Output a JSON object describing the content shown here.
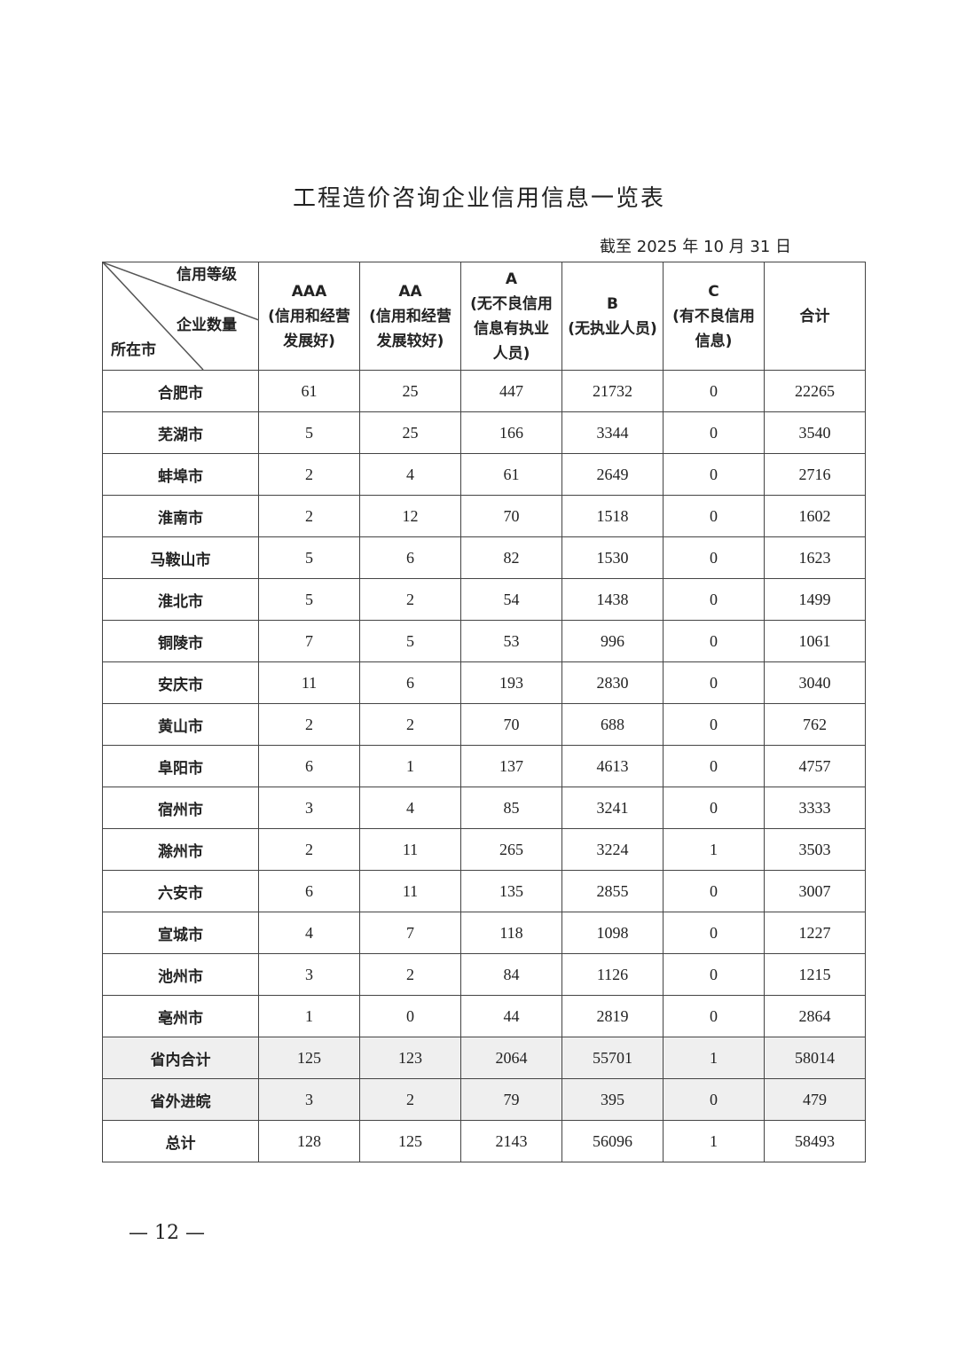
{
  "title": "工程造价咨询企业信用信息一览表",
  "date_note": "截至 2025 年 10 月 31 日",
  "corner": {
    "top": "信用等级",
    "middle": "企业数量",
    "bottom": "所在市"
  },
  "columns": [
    {
      "grade": "AAA",
      "desc": "(信用和经营发展好)"
    },
    {
      "grade": "AA",
      "desc": "(信用和经营发展较好)"
    },
    {
      "grade": "A",
      "desc": "(无不良信用信息有执业人员)"
    },
    {
      "grade": "B",
      "desc": "(无执业人员)"
    },
    {
      "grade": "C",
      "desc": "(有不良信用信息)"
    },
    {
      "grade": "",
      "desc": "合计"
    }
  ],
  "rows": [
    {
      "city": "合肥市",
      "v": [
        "61",
        "25",
        "447",
        "21732",
        "0",
        "22265"
      ]
    },
    {
      "city": "芜湖市",
      "v": [
        "5",
        "25",
        "166",
        "3344",
        "0",
        "3540"
      ]
    },
    {
      "city": "蚌埠市",
      "v": [
        "2",
        "4",
        "61",
        "2649",
        "0",
        "2716"
      ]
    },
    {
      "city": "淮南市",
      "v": [
        "2",
        "12",
        "70",
        "1518",
        "0",
        "1602"
      ]
    },
    {
      "city": "马鞍山市",
      "v": [
        "5",
        "6",
        "82",
        "1530",
        "0",
        "1623"
      ]
    },
    {
      "city": "淮北市",
      "v": [
        "5",
        "2",
        "54",
        "1438",
        "0",
        "1499"
      ]
    },
    {
      "city": "铜陵市",
      "v": [
        "7",
        "5",
        "53",
        "996",
        "0",
        "1061"
      ]
    },
    {
      "city": "安庆市",
      "v": [
        "11",
        "6",
        "193",
        "2830",
        "0",
        "3040"
      ]
    },
    {
      "city": "黄山市",
      "v": [
        "2",
        "2",
        "70",
        "688",
        "0",
        "762"
      ]
    },
    {
      "city": "阜阳市",
      "v": [
        "6",
        "1",
        "137",
        "4613",
        "0",
        "4757"
      ]
    },
    {
      "city": "宿州市",
      "v": [
        "3",
        "4",
        "85",
        "3241",
        "0",
        "3333"
      ]
    },
    {
      "city": "滁州市",
      "v": [
        "2",
        "11",
        "265",
        "3224",
        "1",
        "3503"
      ]
    },
    {
      "city": "六安市",
      "v": [
        "6",
        "11",
        "135",
        "2855",
        "0",
        "3007"
      ]
    },
    {
      "city": "宣城市",
      "v": [
        "4",
        "7",
        "118",
        "1098",
        "0",
        "1227"
      ]
    },
    {
      "city": "池州市",
      "v": [
        "3",
        "2",
        "84",
        "1126",
        "0",
        "1215"
      ]
    },
    {
      "city": "亳州市",
      "v": [
        "1",
        "0",
        "44",
        "2819",
        "0",
        "2864"
      ]
    },
    {
      "city": "省内合计",
      "v": [
        "125",
        "123",
        "2064",
        "55701",
        "1",
        "58014"
      ],
      "shaded": true
    },
    {
      "city": "省外进皖",
      "v": [
        "3",
        "2",
        "79",
        "395",
        "0",
        "479"
      ],
      "shaded": true
    },
    {
      "city": "总计",
      "v": [
        "128",
        "125",
        "2143",
        "56096",
        "1",
        "58493"
      ]
    }
  ],
  "page_number": "— 12 —"
}
